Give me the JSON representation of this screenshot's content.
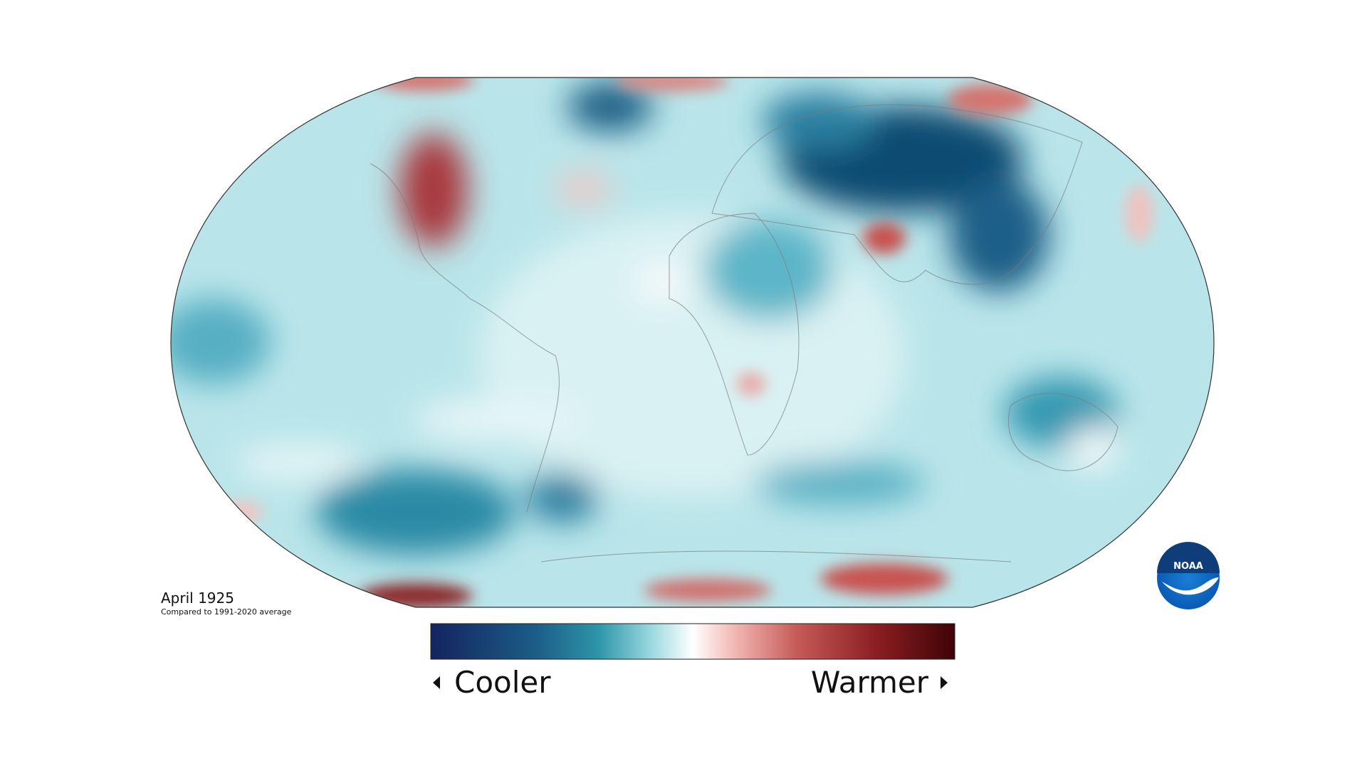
{
  "map": {
    "title": "April 1925",
    "subtitle": "Compared to 1991-2020 average"
  },
  "legend": {
    "low": "Cooler",
    "high": "Warmer"
  },
  "logo": {
    "text": "NOAA"
  }
}
